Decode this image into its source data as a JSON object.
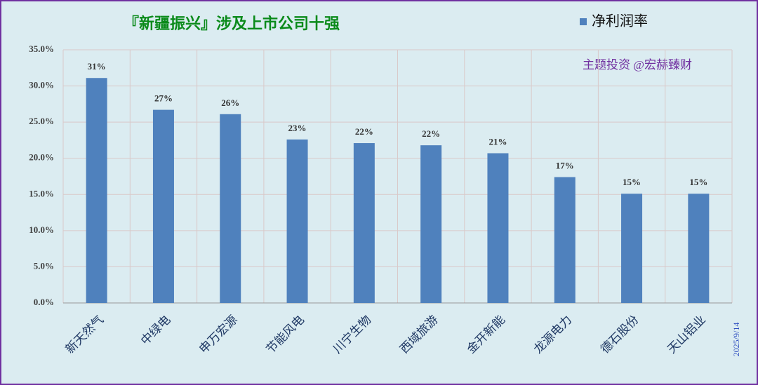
{
  "chart_data": {
    "type": "bar",
    "title": "『新疆振兴』涉及上市公司十强",
    "annotation": "主题投资 @宏赫臻财",
    "date": "2025/9/14",
    "categories": [
      "新天然气",
      "中绿电",
      "申万宏源",
      "节能风电",
      "川宁生物",
      "西域旅游",
      "金开新能",
      "龙源电力",
      "德石股份",
      "天山铝业"
    ],
    "series": [
      {
        "name": "净利润率",
        "color": "#4f81bd",
        "values": [
          31.1,
          26.7,
          26.1,
          22.6,
          22.1,
          21.8,
          20.7,
          17.4,
          15.1,
          15.1
        ],
        "value_labels": [
          "31%",
          "27%",
          "26%",
          "23%",
          "22%",
          "22%",
          "21%",
          "17%",
          "15%",
          "15%"
        ]
      }
    ],
    "ylim": [
      0,
      35
    ],
    "yticks": [
      {
        "value": 0,
        "label": "0.0%"
      },
      {
        "value": 5,
        "label": "5.0%"
      },
      {
        "value": 10,
        "label": "10.0%"
      },
      {
        "value": 15,
        "label": "15.0%"
      },
      {
        "value": 20,
        "label": "20.0%"
      },
      {
        "value": 25,
        "label": "25.0%"
      },
      {
        "value": 30,
        "label": "30.0%"
      },
      {
        "value": 35,
        "label": "35.0%"
      }
    ],
    "grid": true,
    "legend": "top-right"
  }
}
